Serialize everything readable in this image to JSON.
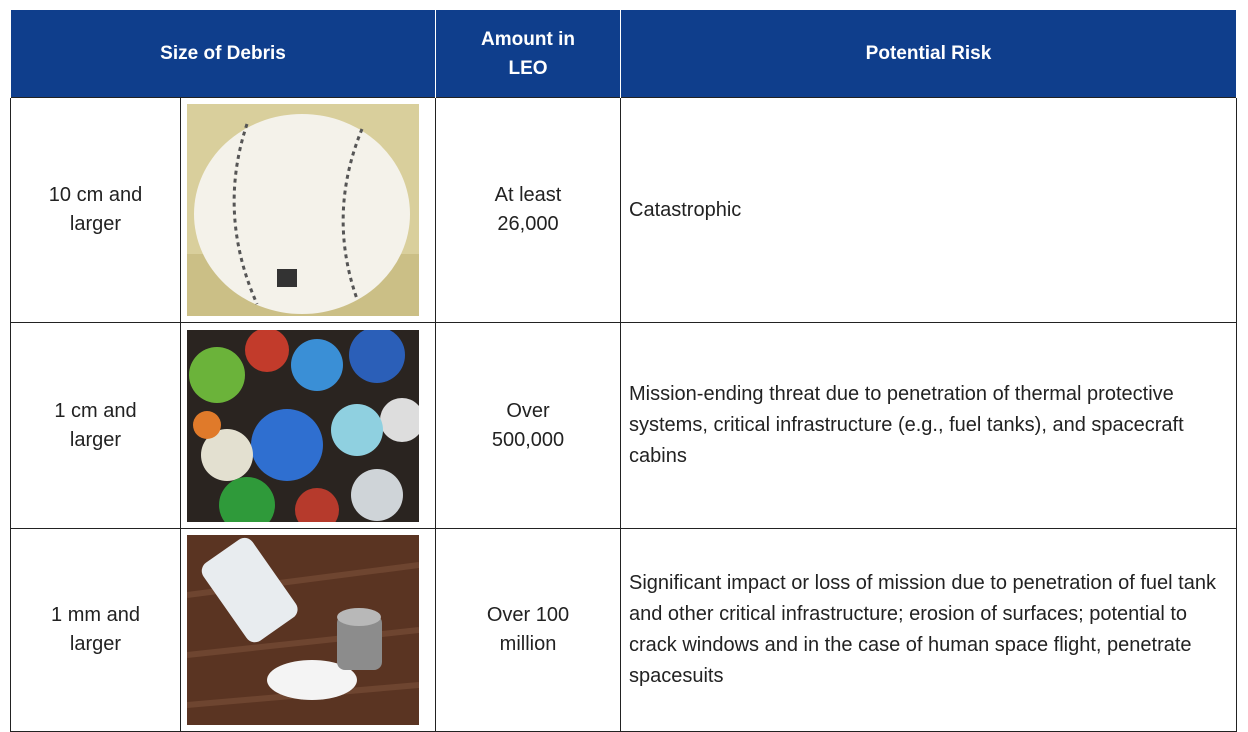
{
  "table": {
    "header": [
      "Size of Debris",
      "Amount in LEO",
      "Potential Risk"
    ],
    "rows": [
      [
        "10 cm and larger",
        "At least 26,000",
        "Catastrophic"
      ],
      [
        "1 cm and larger",
        "Over 500,000",
        "Mission-ending threat due to penetration of thermal protective systems, critical infrastructure (e.g., fuel tanks), and spacecraft cabins"
      ],
      [
        "1 mm and larger",
        "Over 100 million",
        "Significant impact or loss of mission due to penetration of fuel tank and other critical infrastructure; erosion of surfaces; potential to crack windows and in the case of human space flight, penetrate spacesuits"
      ]
    ]
  }
}
